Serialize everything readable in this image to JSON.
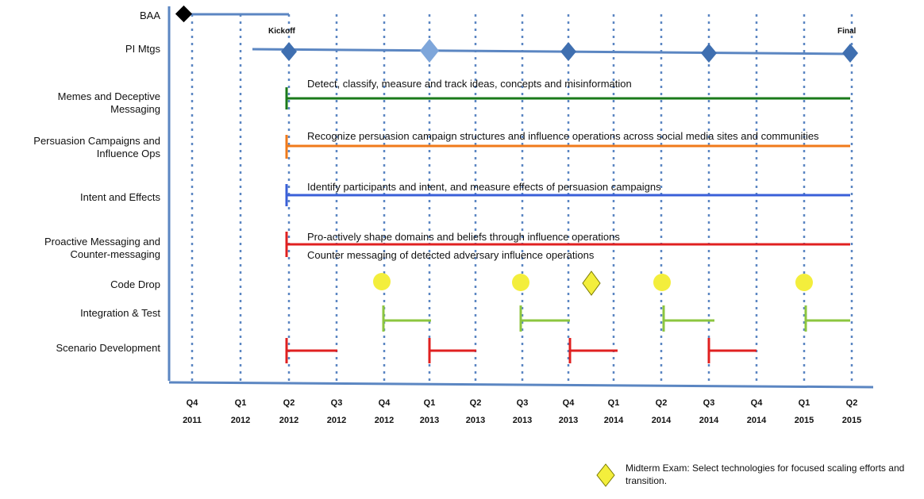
{
  "milestone_labels": {
    "kickoff": "Kickoff",
    "final": "Final"
  },
  "rows": [
    {
      "label": "BAA"
    },
    {
      "label": "PI Mtgs"
    },
    {
      "label": "Memes and Deceptive Messaging",
      "text": "Detect, classify, measure and track ideas, concepts and misinformation",
      "color": "#1a7a1a"
    },
    {
      "label": "Persuasion Campaigns and Influence Ops",
      "text": "Recognize persuasion campaign structures and influence operations across social media sites and communities",
      "color": "#f07a1a"
    },
    {
      "label": "Intent and Effects",
      "text": "Identify participants and intent, and measure effects of persuasion campaigns",
      "color": "#3a5fd8"
    },
    {
      "label": "Proactive Messaging and Counter-messaging",
      "text_1": "Pro-actively shape domains and beliefs through influence operations",
      "text_2": "Counter messaging of detected adversary influence operations",
      "color": "#e02020"
    },
    {
      "label": "Code Drop"
    },
    {
      "label": "Integration & Test"
    },
    {
      "label": "Scenario Development"
    }
  ],
  "quarters": [
    {
      "q": "Q4",
      "year": "2011"
    },
    {
      "q": "Q1",
      "year": "2012"
    },
    {
      "q": "Q2",
      "year": "2012"
    },
    {
      "q": "Q3",
      "year": "2012"
    },
    {
      "q": "Q4",
      "year": "2012"
    },
    {
      "q": "Q1",
      "year": "2013"
    },
    {
      "q": "Q2",
      "year": "2013"
    },
    {
      "q": "Q3",
      "year": "2013"
    },
    {
      "q": "Q4",
      "year": "2013"
    },
    {
      "q": "Q1",
      "year": "2014"
    },
    {
      "q": "Q2",
      "year": "2014"
    },
    {
      "q": "Q3",
      "year": "2014"
    },
    {
      "q": "Q4",
      "year": "2014"
    },
    {
      "q": "Q1",
      "year": "2015"
    },
    {
      "q": "Q2",
      "year": "2015"
    }
  ],
  "legend": {
    "text": "Midterm Exam: Select technologies for focused scaling efforts and transition."
  },
  "colors": {
    "axis": "#5b86c2",
    "diamond": "#3f6fb0",
    "diamond_light": "#7ea6da",
    "code_drop": "#f3ee3c",
    "integration": "#8cc63f",
    "scenario": "#e02020"
  }
}
